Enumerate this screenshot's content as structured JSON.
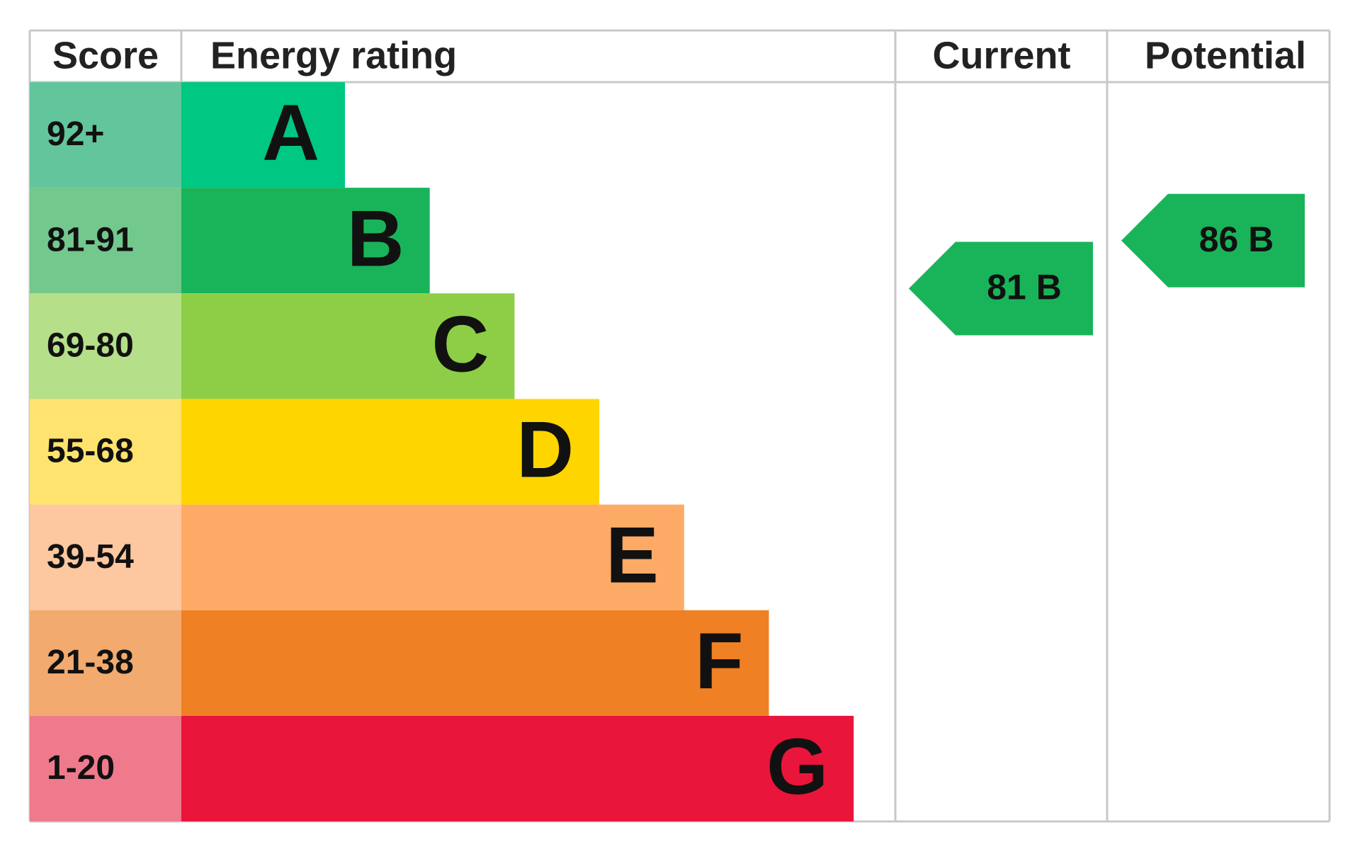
{
  "chart_data": {
    "type": "epc",
    "headers": {
      "score": "Score",
      "rating": "Energy rating",
      "current": "Current",
      "potential": "Potential"
    },
    "bands": [
      {
        "score": "92+",
        "letter": "A",
        "color": "#00c781",
        "score_color": "#63c59c"
      },
      {
        "score": "81-91",
        "letter": "B",
        "color": "#19b459",
        "score_color": "#72c88d"
      },
      {
        "score": "69-80",
        "letter": "C",
        "color": "#8dce46",
        "score_color": "#b5df89"
      },
      {
        "score": "55-68",
        "letter": "D",
        "color": "#ffd500",
        "score_color": "#ffe36f"
      },
      {
        "score": "39-54",
        "letter": "E",
        "color": "#fcaa65",
        "score_color": "#fdc7a0"
      },
      {
        "score": "21-38",
        "letter": "F",
        "color": "#ef8023",
        "score_color": "#f2aa6e"
      },
      {
        "score": "1-20",
        "letter": "G",
        "color": "#e9153b",
        "score_color": "#ef7a8c"
      }
    ],
    "current": {
      "value": 81,
      "label": "81 B"
    },
    "potential": {
      "value": 86,
      "label": "86 B"
    }
  }
}
